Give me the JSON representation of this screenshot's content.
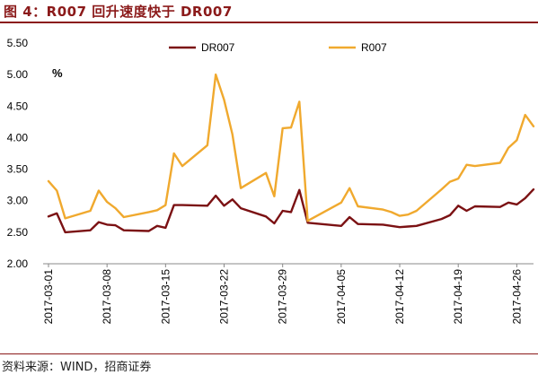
{
  "title": "图 4：R007 回升速度快于 DR007",
  "source": "资料来源：WIND，招商证券",
  "colors": {
    "title": "#8B1A1A",
    "DR007": "#7B1113",
    "R007": "#F0A92E"
  },
  "chart_data": {
    "type": "line",
    "unit_label": "%",
    "ylim": [
      2.0,
      5.5
    ],
    "y_ticks": [
      "2.00",
      "2.50",
      "3.00",
      "3.50",
      "4.00",
      "4.50",
      "5.00",
      "5.50"
    ],
    "x_tick_labels": [
      "2017-03-01",
      "2017-03-08",
      "2017-03-15",
      "2017-03-22",
      "2017-03-29",
      "2017-04-05",
      "2017-04-12",
      "2017-04-19",
      "2017-04-26"
    ],
    "legend": {
      "position": "top",
      "entries": [
        "DR007",
        "R007"
      ]
    },
    "grid": false,
    "x": [
      "2017-03-01",
      "2017-03-02",
      "2017-03-03",
      "2017-03-06",
      "2017-03-07",
      "2017-03-08",
      "2017-03-09",
      "2017-03-10",
      "2017-03-13",
      "2017-03-14",
      "2017-03-15",
      "2017-03-16",
      "2017-03-17",
      "2017-03-20",
      "2017-03-21",
      "2017-03-22",
      "2017-03-23",
      "2017-03-24",
      "2017-03-27",
      "2017-03-28",
      "2017-03-29",
      "2017-03-30",
      "2017-03-31",
      "2017-04-01",
      "2017-04-05",
      "2017-04-06",
      "2017-04-07",
      "2017-04-10",
      "2017-04-11",
      "2017-04-12",
      "2017-04-13",
      "2017-04-14",
      "2017-04-17",
      "2017-04-18",
      "2017-04-19",
      "2017-04-20",
      "2017-04-21",
      "2017-04-24",
      "2017-04-25",
      "2017-04-26",
      "2017-04-27",
      "2017-04-28"
    ],
    "series": [
      {
        "name": "DR007",
        "values": [
          2.75,
          2.8,
          2.5,
          2.53,
          2.66,
          2.62,
          2.61,
          2.53,
          2.52,
          2.6,
          2.57,
          2.93,
          2.93,
          2.92,
          3.08,
          2.92,
          3.02,
          2.88,
          2.75,
          2.64,
          2.84,
          2.82,
          3.17,
          2.65,
          2.6,
          2.74,
          2.63,
          2.62,
          2.6,
          2.58,
          2.59,
          2.6,
          2.71,
          2.77,
          2.92,
          2.84,
          2.91,
          2.9,
          2.97,
          2.94,
          3.04,
          3.18
        ]
      },
      {
        "name": "R007",
        "values": [
          3.31,
          3.16,
          2.72,
          2.84,
          3.16,
          2.98,
          2.88,
          2.74,
          2.82,
          2.85,
          2.93,
          3.75,
          3.55,
          3.88,
          5.0,
          4.6,
          4.05,
          3.2,
          3.44,
          3.07,
          4.15,
          4.16,
          4.57,
          2.68,
          2.97,
          3.2,
          2.91,
          2.86,
          2.82,
          2.76,
          2.78,
          2.84,
          3.18,
          3.3,
          3.35,
          3.57,
          3.55,
          3.6,
          3.84,
          3.96,
          4.36,
          4.18
        ]
      }
    ]
  }
}
